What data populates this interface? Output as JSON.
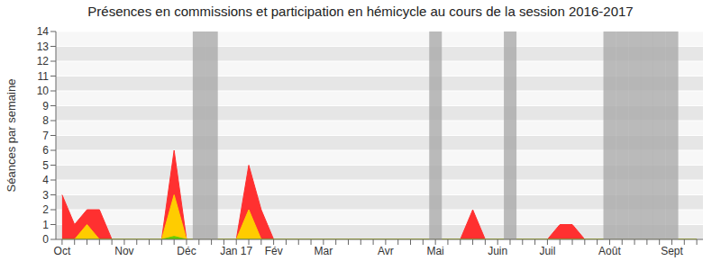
{
  "chart_data": {
    "type": "area",
    "title": "Présences en commissions et participation en hémicycle au cours de la session 2016-2017",
    "y_label": "Séances par semaine",
    "categories": [
      "Oct",
      null,
      null,
      null,
      null,
      "Nov",
      null,
      null,
      null,
      null,
      "Déc",
      null,
      null,
      null,
      "Jan 17",
      null,
      null,
      "Fév",
      null,
      null,
      null,
      "Mar",
      null,
      null,
      null,
      null,
      "Avr",
      null,
      null,
      null,
      "Mai",
      null,
      null,
      null,
      null,
      "Juin",
      null,
      null,
      null,
      "Juil",
      null,
      null,
      null,
      null,
      "Août",
      null,
      null,
      null,
      null,
      "Sept",
      null,
      null
    ],
    "series": [
      {
        "color": "#ff3030",
        "values": [
          3,
          1,
          2,
          2,
          0,
          0,
          0,
          0,
          0,
          6,
          0,
          0,
          0,
          0,
          0,
          5,
          2,
          0,
          0,
          0,
          0,
          0,
          0,
          0,
          0,
          0,
          0,
          0,
          0,
          0,
          0,
          0,
          0,
          2,
          0,
          0,
          0,
          0,
          0,
          0,
          1,
          1,
          0,
          0,
          0,
          0,
          0,
          0,
          0,
          0,
          0,
          0
        ]
      },
      {
        "color": "#ffcc00",
        "values": [
          0,
          0,
          1,
          0,
          0,
          0,
          0,
          0,
          0,
          3,
          0,
          0,
          0,
          0,
          0,
          2,
          0,
          0,
          0,
          0,
          0,
          0,
          0,
          0,
          0,
          0,
          0,
          0,
          0,
          0,
          0,
          0,
          0,
          0,
          0,
          0,
          0,
          0,
          0,
          0,
          0,
          0,
          0,
          0,
          0,
          0,
          0,
          0,
          0,
          0,
          0,
          0
        ]
      },
      {
        "color": "#66cc00",
        "values": [
          0,
          0,
          0,
          0,
          0,
          0,
          0,
          0,
          0,
          0.2,
          0,
          0,
          0,
          0,
          0,
          0,
          0,
          0,
          0,
          0,
          0,
          0,
          0,
          0,
          0,
          0,
          0,
          0,
          0,
          0,
          0,
          0,
          0,
          0,
          0,
          0,
          0,
          0,
          0,
          0,
          0,
          0,
          0,
          0,
          0,
          0,
          0,
          0,
          0,
          0,
          0,
          0
        ]
      }
    ],
    "shaded_weeks": [
      11,
      12,
      30,
      36,
      44,
      45,
      46,
      47,
      48,
      49
    ],
    "ylim": [
      0,
      14
    ],
    "yticks": [
      0,
      1,
      2,
      3,
      4,
      5,
      6,
      7,
      8,
      9,
      10,
      11,
      12,
      13,
      14
    ],
    "grid": true,
    "stacked": false
  }
}
